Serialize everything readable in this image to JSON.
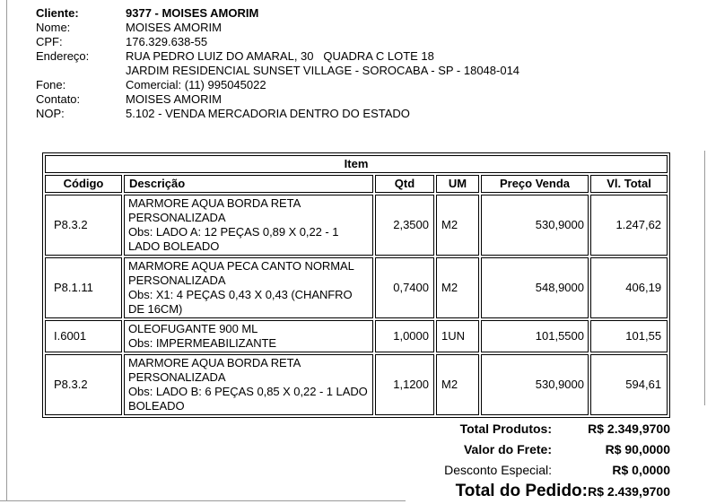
{
  "client": {
    "fields": [
      {
        "label": "Cliente:",
        "value": "9377 - MOISES AMORIM",
        "bold": true
      },
      {
        "label": "Nome:",
        "value": "MOISES AMORIM",
        "bold": false
      },
      {
        "label": "CPF:",
        "value": "176.329.638-55",
        "bold": false
      },
      {
        "label": "Endereço:",
        "value": "RUA PEDRO LUIZ DO AMARAL, 30   QUADRA C LOTE 18\nJARDIM RESIDENCIAL SUNSET VILLAGE - SOROCABA - SP - 18048-014",
        "bold": false
      },
      {
        "label": "Fone:",
        "value": "Comercial: (11) 995045022",
        "bold": false
      },
      {
        "label": "Contato:",
        "value": "MOISES AMORIM",
        "bold": false
      },
      {
        "label": "NOP:",
        "value": "5.102 - VENDA MERCADORIA DENTRO DO ESTADO",
        "bold": false
      }
    ]
  },
  "items_table": {
    "title": "Item",
    "columns": [
      "Código",
      "Descrição",
      "Qtd",
      "UM",
      "Preço Venda",
      "Vl. Total"
    ],
    "rows": [
      {
        "codigo": "P8.3.2",
        "descricao": "MARMORE AQUA BORDA RETA\nPERSONALIZADA\nObs: LADO A: 12 PEÇAS 0,89 X 0,22 - 1\nLADO BOLEADO",
        "qtd": "2,3500",
        "um": "M2",
        "preco_venda": "530,9000",
        "vl_total": "1.247,62"
      },
      {
        "codigo": "P8.1.11",
        "descricao": "MARMORE AQUA PECA CANTO NORMAL\nPERSONALIZADA\nObs: X1: 4 PEÇAS 0,43 X 0,43 (CHANFRO\nDE 16CM)",
        "qtd": "0,7400",
        "um": "M2",
        "preco_venda": "548,9000",
        "vl_total": "406,19"
      },
      {
        "codigo": "I.6001",
        "descricao": "OLEOFUGANTE 900 ML\nObs: IMPERMEABILIZANTE",
        "qtd": "1,0000",
        "um": "1UN",
        "preco_venda": "101,5500",
        "vl_total": "101,55"
      },
      {
        "codigo": "P8.3.2",
        "descricao": "MARMORE AQUA BORDA RETA\nPERSONALIZADA\nObs: LADO B: 6 PEÇAS 0,85 X 0,22 - 1 LADO\nBOLEADO",
        "qtd": "1,1200",
        "um": "M2",
        "preco_venda": "530,9000",
        "vl_total": "594,61"
      }
    ]
  },
  "totals": {
    "rows": [
      {
        "label": "Total Produtos:",
        "value": "R$ 2.349,9700",
        "bold": true
      },
      {
        "label": "Valor do Frete:",
        "value": "R$ 90,0000",
        "bold": true
      },
      {
        "label": "Desconto Especial:",
        "value": "R$ 0,0000",
        "bold": false
      }
    ],
    "grand_total": {
      "label": "Total do Pedido:",
      "value": "R$ 2.439,9700"
    }
  },
  "colors": {
    "text": "#000000",
    "table_border": "#000000",
    "page_frame": "#9a9a9a",
    "background": "#ffffff"
  }
}
